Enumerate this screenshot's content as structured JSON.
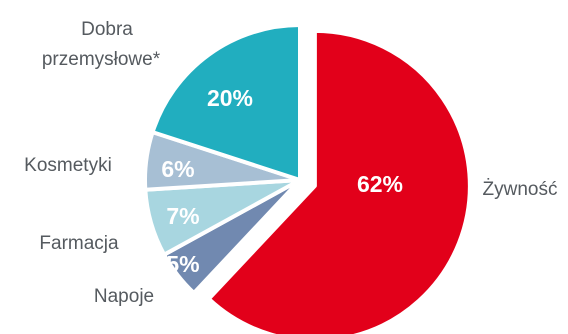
{
  "chart_data": {
    "type": "pie",
    "slices": [
      {
        "category": "Żywność",
        "value": 62,
        "label": "62%",
        "color": "#e2001a",
        "exploded": true
      },
      {
        "category": "Napoje",
        "value": 5,
        "label": "5%",
        "color": "#7189b0",
        "exploded": false
      },
      {
        "category": "Farmacja",
        "value": 7,
        "label": "7%",
        "color": "#a8d6e0",
        "exploded": false
      },
      {
        "category": "Kosmetyki",
        "value": 6,
        "label": "6%",
        "color": "#a7bfd4",
        "exploded": false
      },
      {
        "category": "Dobra przemysłowe*",
        "value": 20,
        "label": "20%",
        "color": "#21aebf",
        "exploded": false
      }
    ],
    "category_labels": {
      "Żywność": [
        "Żywność"
      ],
      "Napoje": [
        "Napoje"
      ],
      "Farmacja": [
        "Farmacja"
      ],
      "Kosmetyki": [
        "Kosmetyki"
      ],
      "Dobra przemysłowe*": [
        "Dobra",
        "przemysłowe*"
      ]
    },
    "title": "",
    "legend": "none"
  }
}
